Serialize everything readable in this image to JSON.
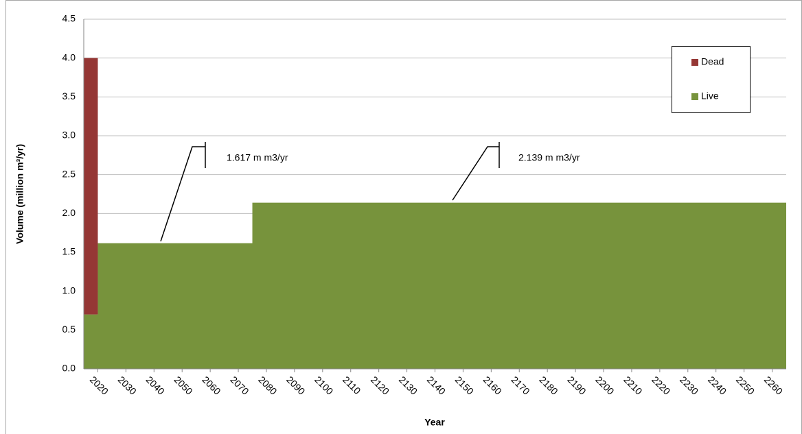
{
  "chart_data": {
    "type": "area",
    "stacked": true,
    "x_label": "Year",
    "y_label": "Volume (million m³/yr)",
    "x": [
      2015,
      2020,
      2020,
      2075,
      2075,
      2265
    ],
    "series": [
      {
        "name": "Live",
        "color": "#77933c",
        "values": [
          0.7,
          0.7,
          1.617,
          1.617,
          2.139,
          2.139
        ]
      },
      {
        "name": "Dead",
        "color": "#953735",
        "values": [
          3.3,
          3.3,
          0,
          0,
          0,
          0
        ]
      }
    ],
    "xlim": [
      2015,
      2265
    ],
    "xticks": [
      2020,
      2030,
      2040,
      2050,
      2060,
      2070,
      2080,
      2090,
      2100,
      2110,
      2120,
      2130,
      2140,
      2150,
      2160,
      2170,
      2180,
      2190,
      2200,
      2210,
      2220,
      2230,
      2240,
      2250,
      2260
    ],
    "ylim": [
      0,
      4.5
    ],
    "yticks": [
      {
        "value": 0,
        "label": "0.0"
      },
      0.5,
      {
        "value": 1,
        "label": "1.0"
      },
      1.5,
      {
        "value": 2,
        "label": "2.0"
      },
      2.5,
      {
        "value": 3,
        "label": "3.0"
      },
      3.5,
      {
        "value": 4,
        "label": "4.0"
      },
      4.5
    ],
    "grid": true,
    "legend": "upper right",
    "annotations": [
      {
        "text": "1.617 m m3/yr"
      },
      {
        "text": "2.139 m m3/yr"
      }
    ]
  }
}
